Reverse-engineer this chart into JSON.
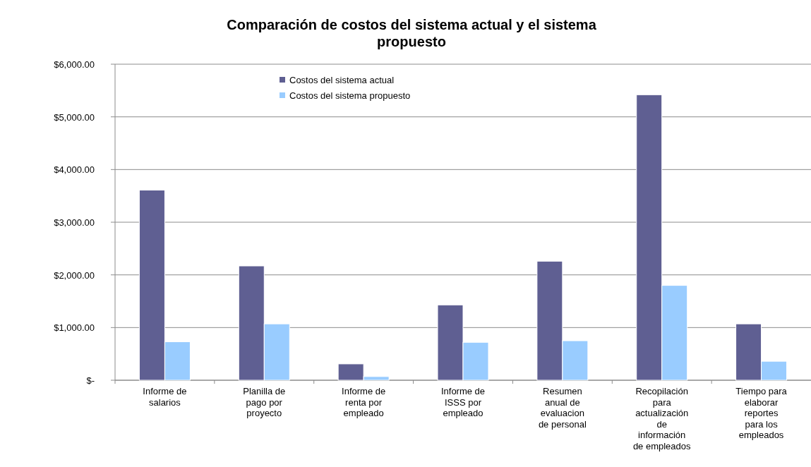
{
  "chart_data": {
    "type": "bar",
    "title": "Comparación de costos del sistema actual y el sistema propuesto",
    "categories": [
      "Informe de salarios",
      "Planilla de pago por proyecto",
      "Informe de renta por empleado",
      "Informe de ISSS por empleado",
      "Resumen anual de evaluacion de personal",
      "Recopilación para actualización de información de empleados",
      "Tiempo para elaborar reportes para los empleados"
    ],
    "series": [
      {
        "name": "Costos del sistema actual",
        "color": "#5f5f92",
        "values": [
          3610,
          2170,
          310,
          1430,
          2260,
          5420,
          1070
        ]
      },
      {
        "name": "Costos del sistema propuesto",
        "color": "#99ccff",
        "values": [
          730,
          1070,
          70,
          720,
          750,
          1800,
          360
        ]
      }
    ],
    "ylim": [
      0,
      6000
    ],
    "yticks": [
      {
        "value": 0,
        "label": "$-"
      },
      {
        "value": 1000,
        "label": "$1,000.00"
      },
      {
        "value": 2000,
        "label": "$2,000.00"
      },
      {
        "value": 3000,
        "label": "$3,000.00"
      },
      {
        "value": 4000,
        "label": "$4,000.00"
      },
      {
        "value": 5000,
        "label": "$5,000.00"
      },
      {
        "value": 6000,
        "label": "$6,000.00"
      }
    ],
    "grid": "y",
    "legend": "top"
  }
}
